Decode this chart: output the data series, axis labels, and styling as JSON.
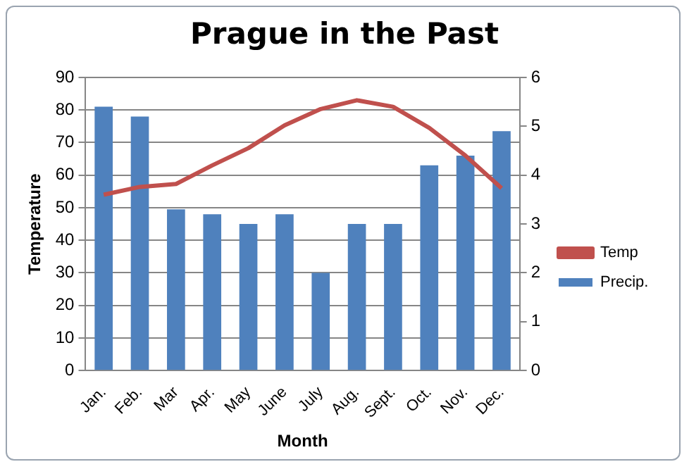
{
  "chart_data": {
    "type": "bar",
    "title": "Prague in the Past",
    "xlabel": "Month",
    "ylabel": "Temperature",
    "categories": [
      "Jan.",
      "Feb.",
      "Mar",
      "Apr.",
      "May",
      "June",
      "July",
      "Aug.",
      "Sept.",
      "Oct.",
      "Nov.",
      "Dec."
    ],
    "series": [
      {
        "name": "Temp",
        "type": "line",
        "color": "#c0504d",
        "values": [
          54,
          56.4,
          57.3,
          63,
          68.3,
          75.3,
          80.3,
          83,
          81,
          74.5,
          66,
          56
        ]
      },
      {
        "name": "Precip.",
        "axis": "y2",
        "color": "#4f81bd",
        "values": [
          5.4,
          5.2,
          3.3,
          3.2,
          3.0,
          3.2,
          2.0,
          3.0,
          3.0,
          4.2,
          4.4,
          4.9
        ]
      }
    ],
    "ylim": [
      0,
      90
    ],
    "yticks": [
      0,
      10,
      20,
      30,
      40,
      50,
      60,
      70,
      80,
      90
    ],
    "y2lim": [
      0,
      6
    ],
    "y2ticks": [
      0,
      1,
      2,
      3,
      4,
      5,
      6
    ],
    "grid": "y",
    "legend": "right",
    "marker": "none"
  }
}
